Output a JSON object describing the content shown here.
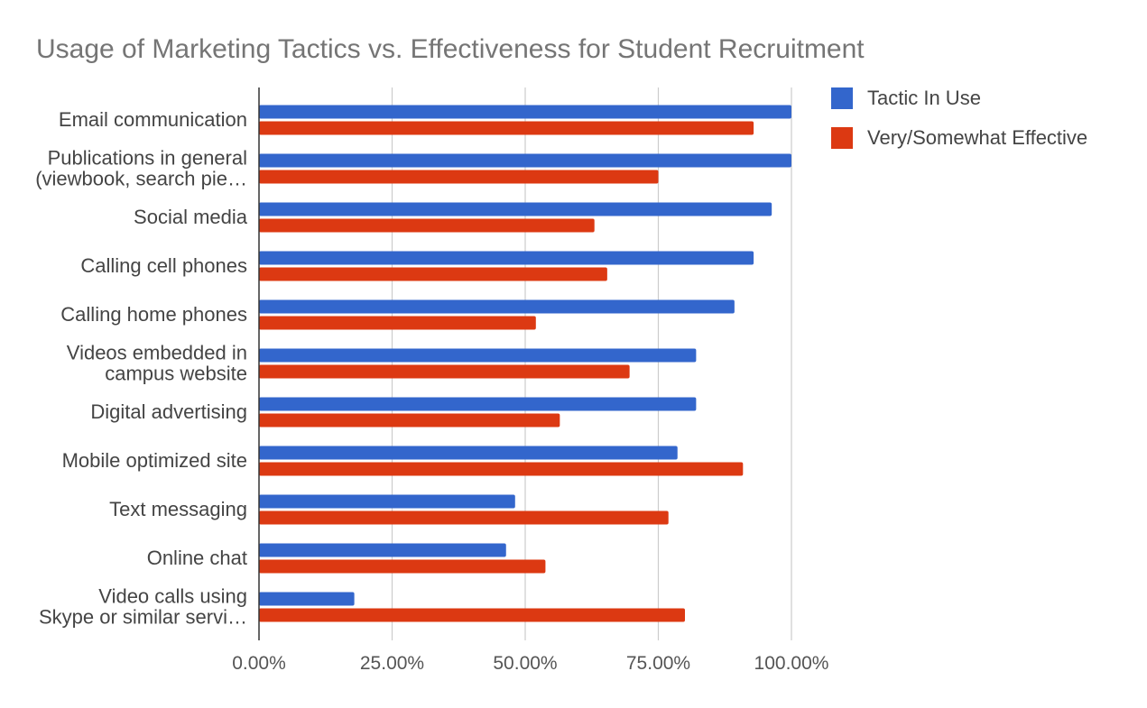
{
  "chart_data": {
    "type": "bar",
    "orientation": "horizontal",
    "title": "Usage of Marketing Tactics vs. Effectiveness for Student Recruitment",
    "xlabel": "",
    "ylabel": "",
    "xlim": [
      0,
      100
    ],
    "x_ticks": [
      "0.00%",
      "25.00%",
      "50.00%",
      "75.00%",
      "100.00%"
    ],
    "grid": true,
    "legend_position": "top-right",
    "categories": [
      [
        "Email communication"
      ],
      [
        "Publications in general",
        "(viewbook, search pie…"
      ],
      [
        "Social media"
      ],
      [
        "Calling cell phones"
      ],
      [
        "Calling home phones"
      ],
      [
        "Videos embedded in",
        "campus website"
      ],
      [
        "Digital advertising"
      ],
      [
        "Mobile optimized site"
      ],
      [
        "Text messaging"
      ],
      [
        "Online chat"
      ],
      [
        "Video calls using",
        "Skype or similar servi…"
      ]
    ],
    "series": [
      {
        "name": "Tactic In Use",
        "color": "#3366cc",
        "values": [
          100,
          100,
          96.3,
          92.9,
          89.3,
          82.1,
          82.1,
          78.6,
          48.1,
          46.4,
          17.9
        ]
      },
      {
        "name": "Very/Somewhat Effective",
        "color": "#dc3912",
        "values": [
          92.9,
          75,
          63.0,
          65.4,
          52,
          69.6,
          56.5,
          90.9,
          76.9,
          53.8,
          80
        ]
      }
    ]
  }
}
